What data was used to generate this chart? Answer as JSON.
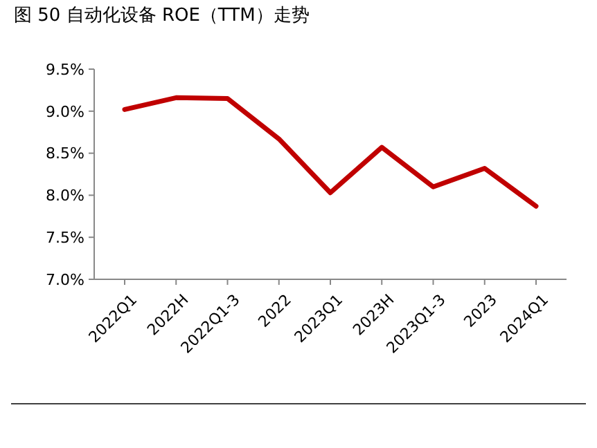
{
  "chart_data": {
    "type": "line",
    "title": "图 50    自动化设备 ROE（TTM）走势",
    "categories": [
      "2022Q1",
      "2022H",
      "2022Q1-3",
      "2022",
      "2023Q1",
      "2023H",
      "2023Q1-3",
      "2023",
      "2024Q1"
    ],
    "series": [
      {
        "color": "#c00000",
        "values": [
          9.02,
          9.16,
          9.15,
          8.67,
          8.03,
          8.57,
          8.1,
          8.32,
          7.87
        ]
      }
    ],
    "ylim": [
      7.0,
      9.5
    ],
    "yticks": [
      {
        "value": 7.0,
        "label": "7.0%"
      },
      {
        "value": 7.5,
        "label": "7.5%"
      },
      {
        "value": 8.0,
        "label": "8.0%"
      },
      {
        "value": 8.5,
        "label": "8.5%"
      },
      {
        "value": 9.0,
        "label": "9.0%"
      },
      {
        "value": 9.5,
        "label": "9.5%"
      }
    ],
    "grid": false,
    "marker": "none",
    "line_style": "solid"
  }
}
